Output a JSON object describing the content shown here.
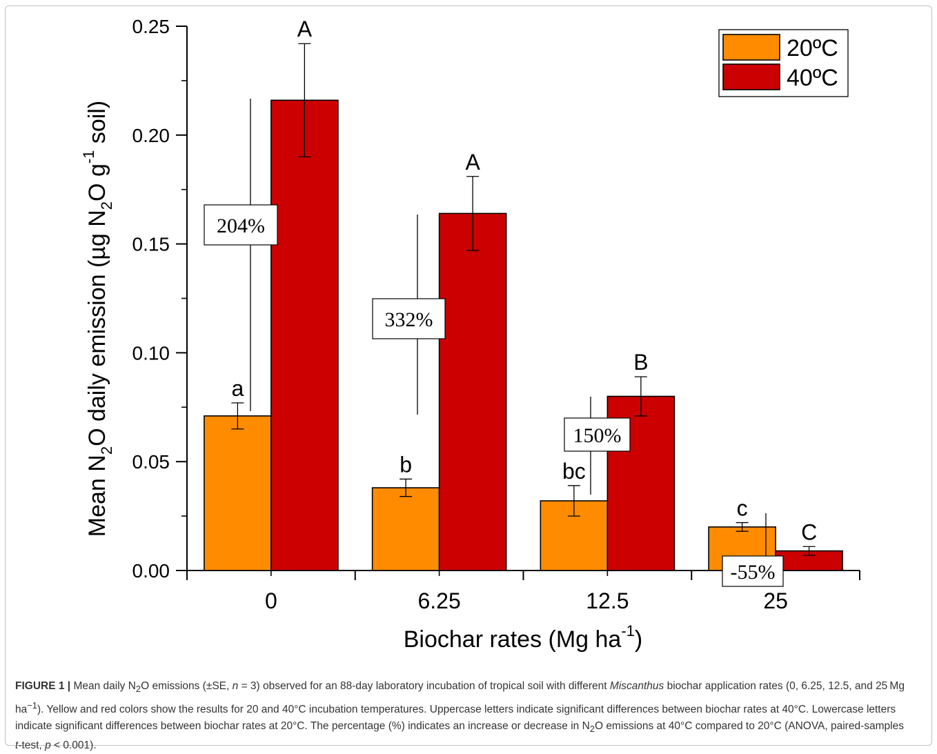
{
  "chart_data": {
    "type": "bar",
    "ylabel_parts": [
      "Mean N",
      "2",
      "O daily emission (µg N",
      "2",
      "O g",
      "-1",
      " soil)"
    ],
    "xlabel_parts": [
      "Biochar rates (Mg ha",
      "-1",
      ")"
    ],
    "categories": [
      "0",
      "6.25",
      "12.5",
      "25"
    ],
    "ylim": [
      0,
      0.25
    ],
    "yticks": [
      "0.00",
      "0.05",
      "0.10",
      "0.15",
      "0.20",
      "0.25"
    ],
    "grid": false,
    "legend_position": "top-right",
    "series": [
      {
        "name": "20ºC",
        "color": "#ff8c00",
        "values": [
          0.071,
          0.038,
          0.032,
          0.02
        ],
        "errors": [
          0.006,
          0.004,
          0.007,
          0.002
        ],
        "letters": [
          "a",
          "b",
          "bc",
          "c"
        ]
      },
      {
        "name": "40ºC",
        "color": "#cc0000",
        "values": [
          0.216,
          0.164,
          0.08,
          0.009
        ],
        "errors": [
          0.026,
          0.017,
          0.009,
          0.002
        ],
        "letters": [
          "A",
          "A",
          "B",
          "C"
        ]
      }
    ],
    "annotations": [
      "204%",
      "332%",
      "150%",
      "-55%"
    ]
  },
  "caption": {
    "label": "FIGURE 1 |",
    "p1": " Mean daily N",
    "s1": "2",
    "p2": "O emissions (±SE, ",
    "n_var": "n",
    "p3": " = 3) observed for an 88-day laboratory incubation of tropical soil with different ",
    "species": "Miscanthus",
    "p4": " biochar application rates (0, 6.25, 12.5, and 25 Mg ha",
    "sup1": "−1",
    "p5": "). Yellow and red colors show the results for 20 and 40°C incubation temperatures. Uppercase letters indicate significant differences between biochar rates at 40°C. Lowercase letters indicate significant differences between biochar rates at 20°C. The percentage (%) indicates an increase or decrease in N",
    "s2": "2",
    "p6": "O emissions at 40°C compared to 20°C (ANOVA, paired-samples ",
    "t_var": "t",
    "p7": "-test, ",
    "p_var": "p",
    "p8": " < 0.001)."
  }
}
